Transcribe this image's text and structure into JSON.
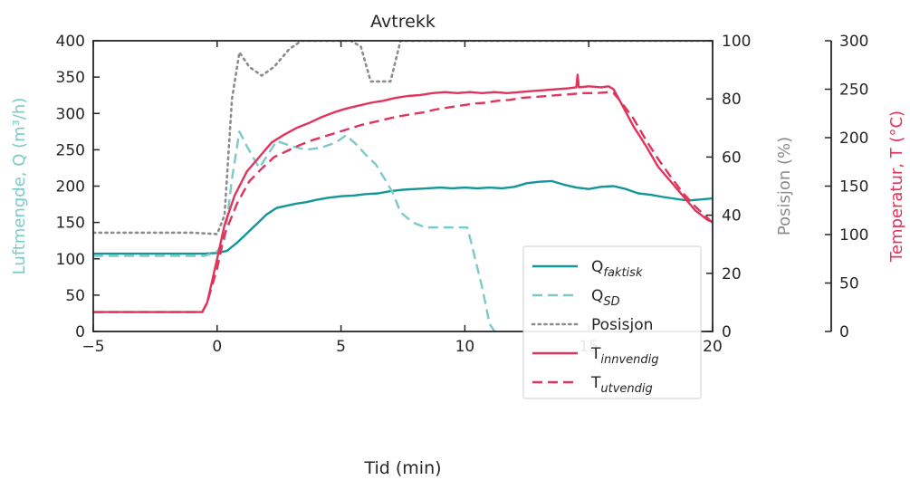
{
  "chart_data": {
    "type": "line",
    "title": "Avtrekk",
    "xlabel": "Tid (min)",
    "xlim": [
      -5,
      20
    ],
    "x_ticks": [
      -5,
      0,
      5,
      10,
      15,
      20
    ],
    "x_tick_labels": [
      "−5",
      "0",
      "5",
      "10",
      "15",
      "20"
    ],
    "axes": {
      "left": {
        "label": "Luftmengde, Q (m³/h)",
        "ylim": [
          0,
          400
        ],
        "ticks": [
          0,
          50,
          100,
          150,
          200,
          250,
          300,
          350,
          400
        ],
        "color": "#7ccac8"
      },
      "right_inner": {
        "label": "Posisjon (%)",
        "ylim": [
          0,
          100
        ],
        "ticks": [
          0,
          20,
          40,
          60,
          80,
          100
        ],
        "color": "#8c8c8c"
      },
      "right_outer": {
        "label": "Temperatur, T (°C)",
        "ylim": [
          0,
          300
        ],
        "ticks": [
          0,
          50,
          100,
          150,
          200,
          250,
          300
        ],
        "color": "#e0345c"
      }
    },
    "grid": false,
    "legend_position": "lower-right",
    "legend": [
      {
        "label": "Q",
        "sub": "faktisk"
      },
      {
        "label": "Q",
        "sub": "SD"
      },
      {
        "label": "Posisjon",
        "sub": ""
      },
      {
        "label": "T",
        "sub": "innvendig"
      },
      {
        "label": "T",
        "sub": "utvendig"
      }
    ],
    "series": [
      {
        "key": "q_faktisk",
        "axis": "left",
        "color": "#13969a",
        "dash": "solid",
        "points": [
          [
            -5,
            107
          ],
          [
            -0.5,
            107
          ],
          [
            0,
            108
          ],
          [
            0.4,
            111
          ],
          [
            0.8,
            122
          ],
          [
            1.2,
            135
          ],
          [
            1.6,
            148
          ],
          [
            2.0,
            161
          ],
          [
            2.4,
            170
          ],
          [
            2.8,
            173
          ],
          [
            3.2,
            176
          ],
          [
            3.6,
            178
          ],
          [
            4.0,
            181
          ],
          [
            4.5,
            184
          ],
          [
            5.0,
            186
          ],
          [
            5.5,
            187
          ],
          [
            6.0,
            189
          ],
          [
            6.5,
            190
          ],
          [
            7.0,
            193
          ],
          [
            7.5,
            195
          ],
          [
            8.0,
            196
          ],
          [
            8.5,
            197
          ],
          [
            9.0,
            198
          ],
          [
            9.5,
            197
          ],
          [
            10.0,
            198
          ],
          [
            10.5,
            197
          ],
          [
            11.0,
            198
          ],
          [
            11.5,
            197
          ],
          [
            12.0,
            199
          ],
          [
            12.5,
            204
          ],
          [
            13.0,
            206
          ],
          [
            13.5,
            207
          ],
          [
            14.0,
            202
          ],
          [
            14.5,
            198
          ],
          [
            15.0,
            196
          ],
          [
            15.5,
            199
          ],
          [
            16.0,
            200
          ],
          [
            16.5,
            196
          ],
          [
            17.0,
            190
          ],
          [
            17.5,
            188
          ],
          [
            18.0,
            185
          ],
          [
            19.0,
            180
          ],
          [
            20.0,
            183
          ]
        ]
      },
      {
        "key": "q_sd",
        "axis": "left",
        "color": "#7ccac8",
        "dash": "dashed",
        "points": [
          [
            -5,
            104
          ],
          [
            -0.5,
            104
          ],
          [
            0,
            110
          ],
          [
            0.3,
            125
          ],
          [
            0.6,
            210
          ],
          [
            0.9,
            275
          ],
          [
            1.2,
            255
          ],
          [
            1.7,
            225
          ],
          [
            2.4,
            262
          ],
          [
            3.0,
            255
          ],
          [
            3.6,
            250
          ],
          [
            4.2,
            253
          ],
          [
            4.8,
            260
          ],
          [
            5.2,
            270
          ],
          [
            5.6,
            258
          ],
          [
            6.0,
            243
          ],
          [
            6.4,
            230
          ],
          [
            6.8,
            208
          ],
          [
            7.1,
            190
          ],
          [
            7.4,
            164
          ],
          [
            7.9,
            150
          ],
          [
            8.4,
            143
          ],
          [
            9.0,
            143
          ],
          [
            9.6,
            143
          ],
          [
            10.1,
            143
          ],
          [
            10.2,
            130
          ],
          [
            10.7,
            60
          ],
          [
            11.0,
            10
          ],
          [
            11.4,
            -10
          ]
        ]
      },
      {
        "key": "posisjon",
        "axis": "right_inner",
        "color": "#8c8c8c",
        "dash": "dotted",
        "points": [
          [
            -5,
            34
          ],
          [
            -1,
            34
          ],
          [
            0,
            33.5
          ],
          [
            0.3,
            40
          ],
          [
            0.6,
            80
          ],
          [
            0.9,
            96
          ],
          [
            1.3,
            91
          ],
          [
            1.8,
            88
          ],
          [
            2.3,
            91
          ],
          [
            2.9,
            97
          ],
          [
            3.4,
            100
          ],
          [
            5.0,
            100
          ],
          [
            5.4,
            100
          ],
          [
            5.8,
            98
          ],
          [
            6.2,
            86
          ],
          [
            7.0,
            86
          ],
          [
            7.4,
            100
          ],
          [
            20,
            100
          ]
        ]
      },
      {
        "key": "t_innvendig",
        "axis": "right_outer",
        "color": "#e0345c",
        "dash": "solid",
        "points": [
          [
            -5,
            20
          ],
          [
            -0.6,
            20
          ],
          [
            -0.4,
            30
          ],
          [
            0,
            75
          ],
          [
            0.3,
            110
          ],
          [
            0.7,
            140
          ],
          [
            1.2,
            165
          ],
          [
            1.7,
            180
          ],
          [
            2.2,
            195
          ],
          [
            2.7,
            203
          ],
          [
            3.2,
            210
          ],
          [
            3.7,
            215
          ],
          [
            4.2,
            221
          ],
          [
            4.7,
            226
          ],
          [
            5.2,
            230
          ],
          [
            5.7,
            233
          ],
          [
            6.2,
            236
          ],
          [
            6.7,
            238
          ],
          [
            7.2,
            241
          ],
          [
            7.7,
            243
          ],
          [
            8.2,
            244
          ],
          [
            8.7,
            246
          ],
          [
            9.2,
            247
          ],
          [
            9.7,
            246
          ],
          [
            10.2,
            247
          ],
          [
            10.7,
            246
          ],
          [
            11.2,
            247
          ],
          [
            11.7,
            246
          ],
          [
            12.2,
            247
          ],
          [
            12.7,
            248
          ],
          [
            13.2,
            249
          ],
          [
            13.7,
            250
          ],
          [
            14.2,
            251
          ],
          [
            14.5,
            252
          ],
          [
            14.55,
            265
          ],
          [
            14.6,
            252
          ],
          [
            15.0,
            253
          ],
          [
            15.5,
            252
          ],
          [
            15.8,
            253
          ],
          [
            16.0,
            250
          ],
          [
            16.3,
            236
          ],
          [
            16.8,
            212
          ],
          [
            17.3,
            192
          ],
          [
            17.8,
            170
          ],
          [
            18.3,
            155
          ],
          [
            18.8,
            140
          ],
          [
            19.3,
            125
          ],
          [
            19.8,
            115
          ],
          [
            20.0,
            113
          ]
        ]
      },
      {
        "key": "t_utvendig",
        "axis": "right_outer",
        "color": "#e0345c",
        "dash": "dashed",
        "points": [
          [
            -5,
            20
          ],
          [
            -0.6,
            20
          ],
          [
            -0.4,
            30
          ],
          [
            0,
            65
          ],
          [
            0.3,
            100
          ],
          [
            0.8,
            132
          ],
          [
            1.3,
            155
          ],
          [
            1.8,
            168
          ],
          [
            2.3,
            180
          ],
          [
            2.8,
            186
          ],
          [
            3.3,
            192
          ],
          [
            3.8,
            197
          ],
          [
            4.3,
            201
          ],
          [
            4.8,
            205
          ],
          [
            5.3,
            209
          ],
          [
            5.8,
            213
          ],
          [
            6.3,
            216
          ],
          [
            6.8,
            219
          ],
          [
            7.3,
            222
          ],
          [
            7.8,
            224
          ],
          [
            8.3,
            226
          ],
          [
            8.8,
            229
          ],
          [
            9.3,
            231
          ],
          [
            9.8,
            233
          ],
          [
            10.3,
            235
          ],
          [
            10.8,
            236
          ],
          [
            11.3,
            238
          ],
          [
            11.8,
            239
          ],
          [
            12.3,
            241
          ],
          [
            12.8,
            242
          ],
          [
            13.3,
            243
          ],
          [
            13.8,
            244
          ],
          [
            14.3,
            245
          ],
          [
            14.8,
            246
          ],
          [
            15.3,
            246
          ],
          [
            15.8,
            247
          ],
          [
            16.0,
            246
          ],
          [
            16.3,
            237
          ],
          [
            16.8,
            220
          ],
          [
            17.3,
            198
          ],
          [
            17.8,
            178
          ],
          [
            18.3,
            160
          ],
          [
            18.8,
            143
          ],
          [
            19.3,
            129
          ],
          [
            19.8,
            117
          ],
          [
            20.0,
            112
          ]
        ]
      }
    ]
  }
}
